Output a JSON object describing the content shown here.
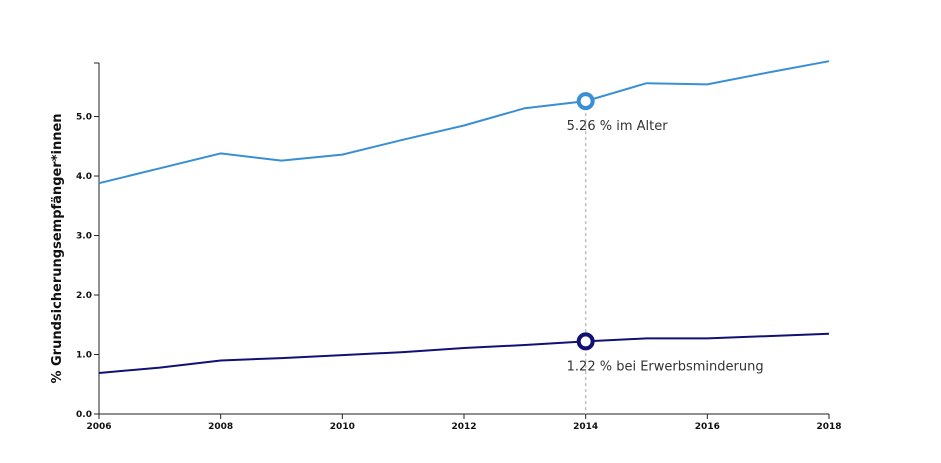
{
  "chart_data": {
    "type": "line",
    "ylabel": "% Grundsicherungsempfänger*innen",
    "xlabel": "",
    "x": [
      2006,
      2007,
      2008,
      2009,
      2010,
      2011,
      2012,
      2013,
      2014,
      2015,
      2016,
      2017,
      2018
    ],
    "xlim": [
      2006,
      2018
    ],
    "ylim": [
      0,
      5.9
    ],
    "x_ticks": [
      "2006",
      "2008",
      "2010",
      "2012",
      "2014",
      "2016",
      "2018"
    ],
    "y_ticks": [
      "0.0",
      "1.0",
      "2.0",
      "3.0",
      "4.0",
      "5.0"
    ],
    "series": [
      {
        "key": "alter",
        "color": "#3a8fd4",
        "values": [
          3.88,
          4.13,
          4.38,
          4.26,
          4.36,
          4.61,
          4.85,
          5.14,
          5.26,
          5.56,
          5.54,
          5.74,
          5.93
        ]
      },
      {
        "key": "erwerb",
        "color": "#111175",
        "values": [
          0.69,
          0.78,
          0.9,
          0.94,
          0.99,
          1.04,
          1.11,
          1.16,
          1.22,
          1.27,
          1.27,
          1.31,
          1.35
        ]
      }
    ],
    "focus_x": 2014,
    "annotations": [
      {
        "series": "alter",
        "x": 2014,
        "y": 5.26,
        "label": "5.26 % im Alter"
      },
      {
        "series": "erwerb",
        "x": 2014,
        "y": 1.22,
        "label": "1.22 % bei Erwerbsminderung"
      }
    ],
    "grid": false,
    "legend": "none"
  }
}
